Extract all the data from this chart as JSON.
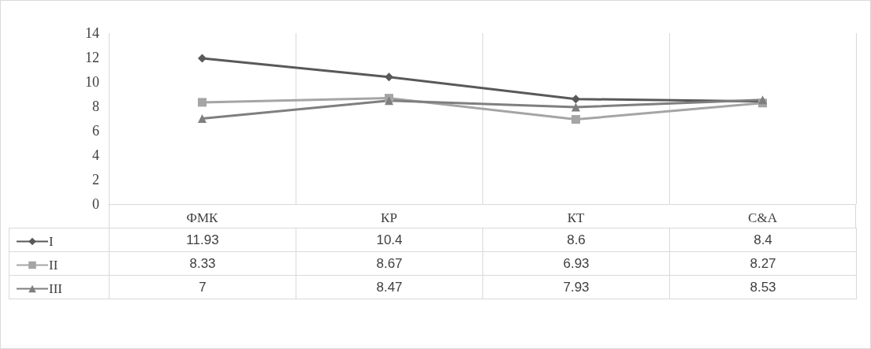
{
  "chart_data": {
    "type": "line",
    "categories": [
      "ФМК",
      "КР",
      "КТ",
      "C&A"
    ],
    "series": [
      {
        "name": "I",
        "color": "#595959",
        "marker": "diamond",
        "values": [
          11.93,
          10.4,
          8.6,
          8.4
        ]
      },
      {
        "name": "II",
        "color": "#a5a5a5",
        "marker": "square",
        "values": [
          8.33,
          8.67,
          6.93,
          8.27
        ]
      },
      {
        "name": "III",
        "color": "#7f7f7f",
        "marker": "triangle",
        "values": [
          7,
          8.47,
          7.93,
          8.53
        ]
      }
    ],
    "ylim": [
      0,
      14
    ],
    "yticks": [
      0,
      2,
      4,
      6,
      8,
      10,
      12,
      14
    ],
    "grid": "x",
    "legend": "bottom left",
    "data_labels": true,
    "line_style": "solid"
  }
}
